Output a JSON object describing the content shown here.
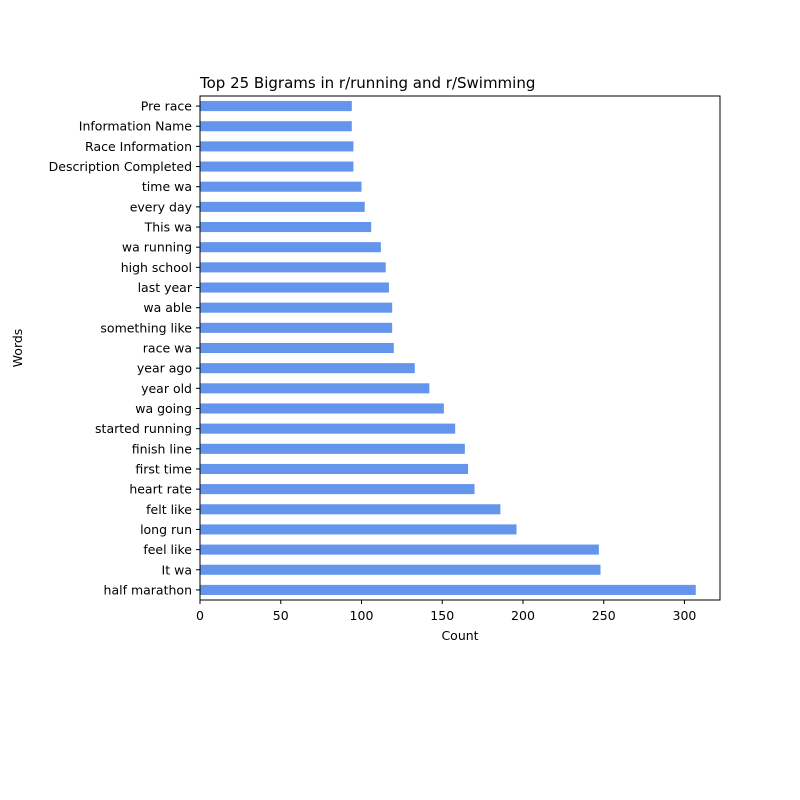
{
  "chart_data": {
    "type": "bar",
    "orientation": "horizontal",
    "title": "Top 25 Bigrams in r/running and r/Swimming",
    "xlabel": "Count",
    "ylabel": "Words",
    "xlim": [
      0,
      322
    ],
    "xticks": [
      0,
      50,
      100,
      150,
      200,
      250,
      300
    ],
    "grid": false,
    "bar_color": "#6495ED",
    "categories": [
      "half marathon",
      "It wa",
      "feel like",
      "long run",
      "felt like",
      "heart rate",
      "first time",
      "finish line",
      "started running",
      "wa going",
      "year old",
      "year ago",
      "race wa",
      "something like",
      "wa able",
      "last year",
      "high school",
      "wa running",
      "This wa",
      "every day",
      "time wa",
      "Description Completed",
      "Race Information",
      "Information Name",
      "Pre race"
    ],
    "values": [
      307,
      248,
      247,
      196,
      186,
      170,
      166,
      164,
      158,
      151,
      142,
      133,
      120,
      119,
      119,
      117,
      115,
      112,
      106,
      102,
      100,
      95,
      95,
      94,
      94
    ]
  }
}
